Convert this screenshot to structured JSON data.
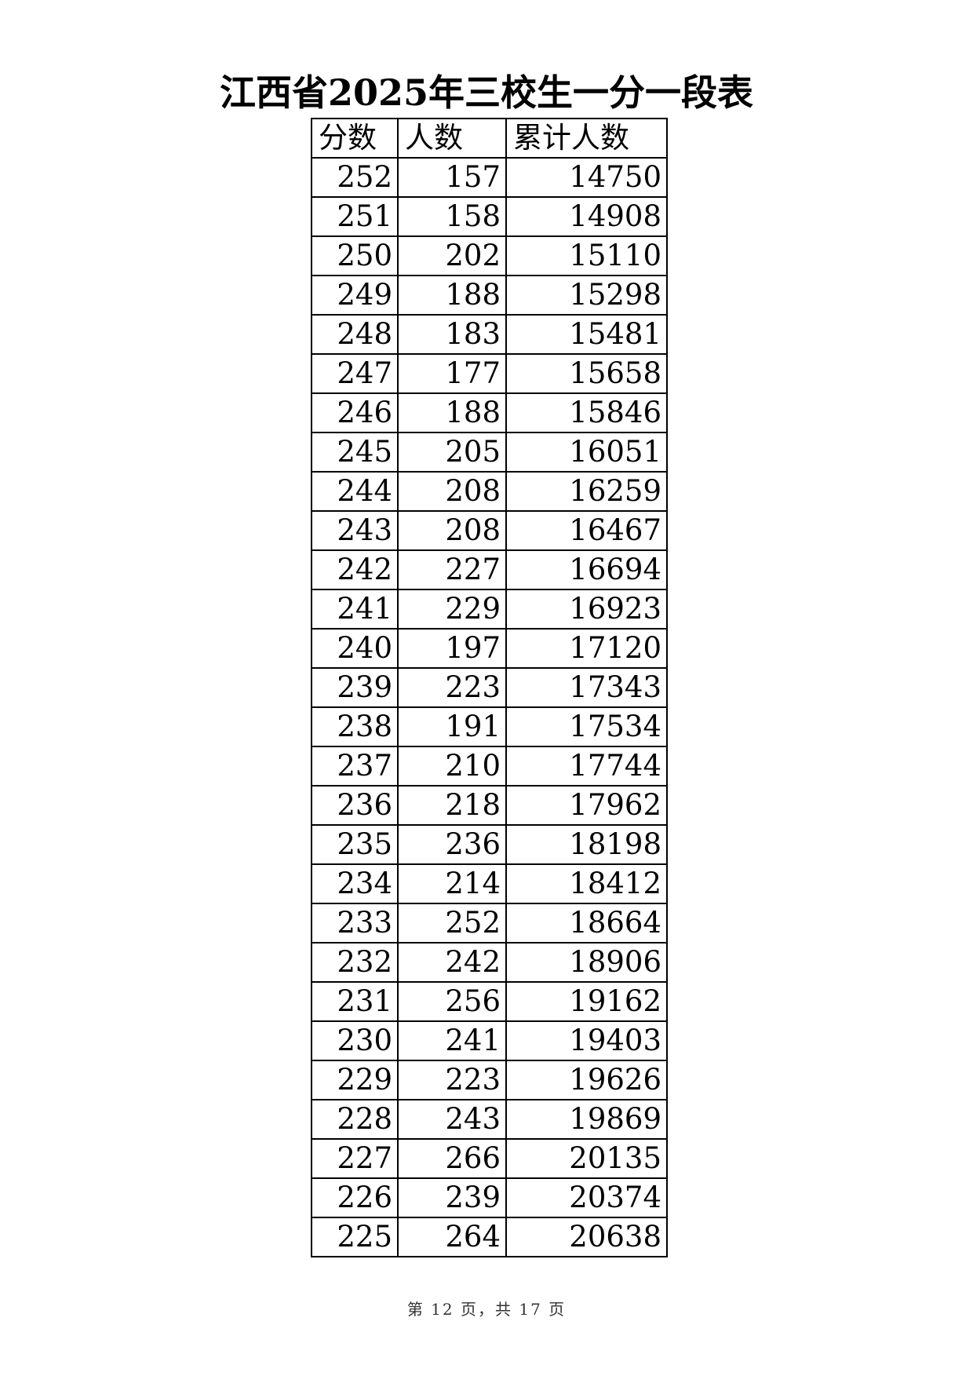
{
  "title": "江西省2025年三校生一分一段表",
  "table": {
    "headers": [
      "分数",
      "人数",
      "累计人数"
    ],
    "rows": [
      [
        "252",
        "157",
        "14750"
      ],
      [
        "251",
        "158",
        "14908"
      ],
      [
        "250",
        "202",
        "15110"
      ],
      [
        "249",
        "188",
        "15298"
      ],
      [
        "248",
        "183",
        "15481"
      ],
      [
        "247",
        "177",
        "15658"
      ],
      [
        "246",
        "188",
        "15846"
      ],
      [
        "245",
        "205",
        "16051"
      ],
      [
        "244",
        "208",
        "16259"
      ],
      [
        "243",
        "208",
        "16467"
      ],
      [
        "242",
        "227",
        "16694"
      ],
      [
        "241",
        "229",
        "16923"
      ],
      [
        "240",
        "197",
        "17120"
      ],
      [
        "239",
        "223",
        "17343"
      ],
      [
        "238",
        "191",
        "17534"
      ],
      [
        "237",
        "210",
        "17744"
      ],
      [
        "236",
        "218",
        "17962"
      ],
      [
        "235",
        "236",
        "18198"
      ],
      [
        "234",
        "214",
        "18412"
      ],
      [
        "233",
        "252",
        "18664"
      ],
      [
        "232",
        "242",
        "18906"
      ],
      [
        "231",
        "256",
        "19162"
      ],
      [
        "230",
        "241",
        "19403"
      ],
      [
        "229",
        "223",
        "19626"
      ],
      [
        "228",
        "243",
        "19869"
      ],
      [
        "227",
        "266",
        "20135"
      ],
      [
        "226",
        "239",
        "20374"
      ],
      [
        "225",
        "264",
        "20638"
      ]
    ]
  },
  "footer": "第 12 页，共 17 页"
}
